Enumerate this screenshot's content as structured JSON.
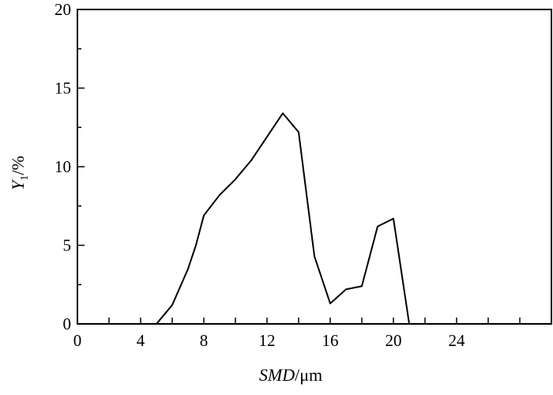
{
  "chart_data": {
    "type": "line",
    "title": "",
    "xlabel": {
      "italic": "SMD",
      "rest": "/μm"
    },
    "ylabel": {
      "italic": "Y",
      "subscript": "1",
      "rest": "/%"
    },
    "xlim": [
      0,
      30
    ],
    "ylim": [
      0,
      20
    ],
    "xticks": [
      0,
      4,
      8,
      12,
      16,
      20,
      24
    ],
    "xtick_marks": [
      0,
      2,
      4,
      6,
      8,
      10,
      12,
      14,
      16,
      18,
      20,
      22,
      24,
      26,
      28,
      30
    ],
    "yticks": [
      0,
      5,
      10,
      15,
      20
    ],
    "grid": false,
    "series": [
      {
        "color": "#000000",
        "x": [
          4.6,
          5.0,
          5.5,
          6.0,
          7.0,
          7.5,
          8.0,
          9.0,
          10.0,
          11.0,
          12.0,
          13.0,
          14.0,
          15.0,
          16.0,
          17.0,
          18.0,
          19.0,
          20.0,
          21.0
        ],
        "y": [
          0.0,
          0.0,
          0.6,
          1.2,
          3.5,
          5.0,
          6.9,
          8.2,
          9.2,
          10.4,
          11.9,
          13.4,
          12.2,
          4.3,
          1.3,
          2.2,
          2.4,
          6.2,
          6.7,
          0.0
        ]
      }
    ]
  }
}
